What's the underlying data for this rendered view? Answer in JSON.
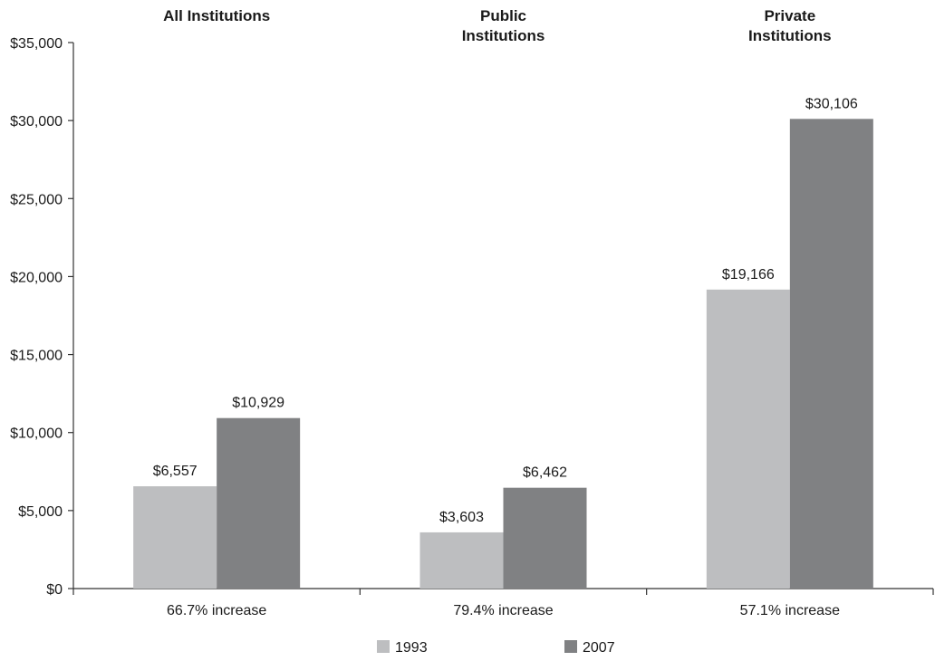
{
  "chart_data": {
    "type": "bar",
    "categories": [
      "All Institutions",
      "Public Institutions",
      "Private Institutions"
    ],
    "category_title_lines": [
      [
        "All Institutions"
      ],
      [
        "Public",
        "Institutions"
      ],
      [
        "Private",
        "Institutions"
      ]
    ],
    "category_notes": [
      "66.7% increase",
      "79.4% increase",
      "57.1% increase"
    ],
    "series": [
      {
        "name": "1993",
        "values": [
          6557,
          3603,
          19166
        ],
        "labels": [
          "$6,557",
          "$3,603",
          "$19,166"
        ],
        "color": "#bdbec0"
      },
      {
        "name": "2007",
        "values": [
          10929,
          6462,
          30106
        ],
        "labels": [
          "$10,929",
          "$6,462",
          "$30,106"
        ],
        "color": "#808183"
      }
    ],
    "ylim": [
      0,
      35000
    ],
    "yticks": [
      0,
      5000,
      10000,
      15000,
      20000,
      25000,
      30000,
      35000
    ],
    "ytick_labels": [
      "$0",
      "$5,000",
      "$10,000",
      "$15,000",
      "$20,000",
      "$25,000",
      "$30,000",
      "$35,000"
    ],
    "grid": false,
    "legend_position": "bottom"
  }
}
